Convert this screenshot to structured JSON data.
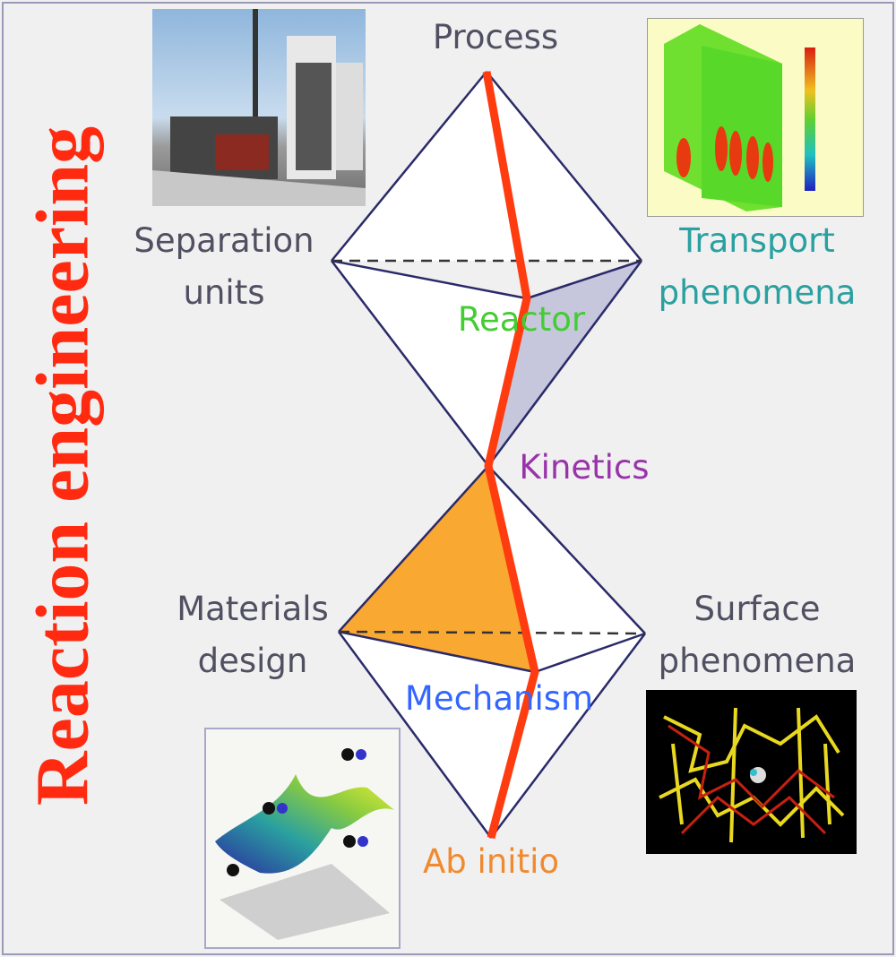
{
  "title": "Reaction engineering",
  "labels": {
    "process": "Process",
    "separation": "Separation units",
    "separation_l1": "Separation",
    "separation_l2": "units",
    "transport_l1": "Transport",
    "transport_l2": "phenomena",
    "reactor": "Reactor",
    "kinetics": "Kinetics",
    "materials_l1": "Materials",
    "materials_l2": "design",
    "surface_l1": "Surface",
    "surface_l2": "phenomena",
    "mechanism": "Mechanism",
    "ab_initio": "Ab initio"
  },
  "colors": {
    "title": "#ff2a10",
    "path": "#ff3b10",
    "edges": "#2a2a6a",
    "reactor_face": "#c6c6dc",
    "materials_face": "#f9a832",
    "transport": "#2aa0a0",
    "reactor": "#44cc33",
    "kinetics": "#9933aa",
    "mechanism": "#3366ff",
    "ab_initio": "#f08a30",
    "neutral": "#505062"
  },
  "images": {
    "plant": "industrial plant photo",
    "cfd": "furnace temperature contour plot",
    "pes": "potential energy surface plot",
    "zeolite": "zeolite framework model"
  }
}
